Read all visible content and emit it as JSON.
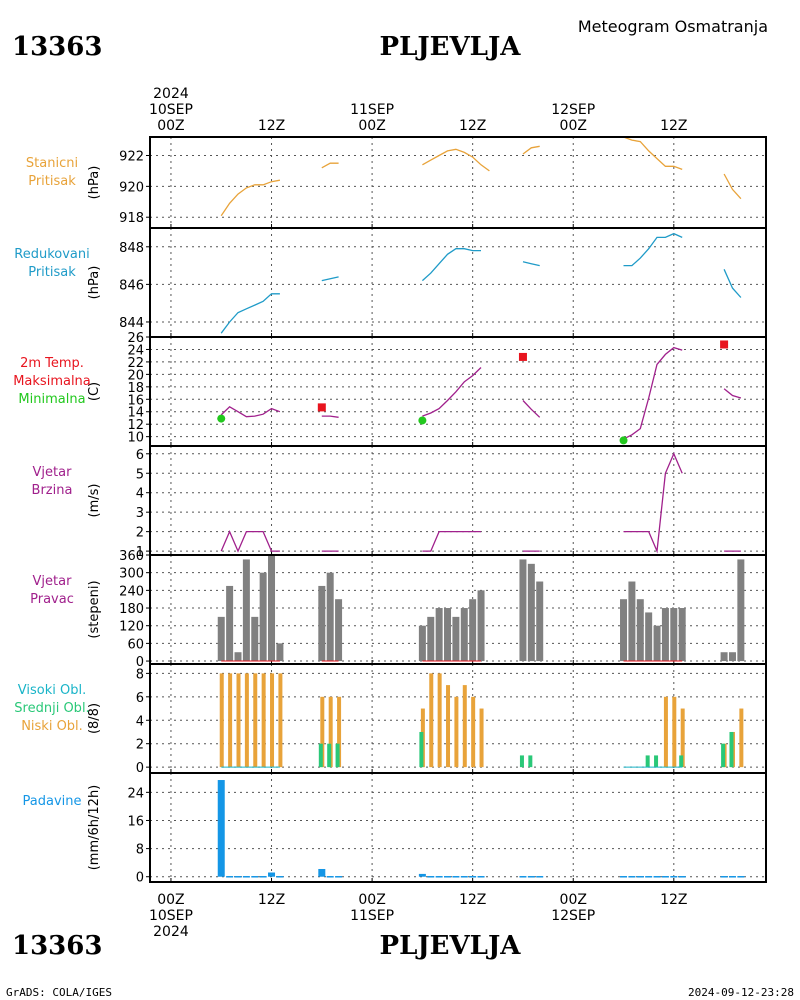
{
  "station_id": "13363",
  "station_name": "PLJEVLJA",
  "product": "Meteogram Osmatranja",
  "footer_left": "GrADS: COLA/IGES",
  "footer_right": "2024-09-12-23:28",
  "time_axis": {
    "top": [
      {
        "h": 0,
        "lines": [
          "2024",
          "10SEP",
          "00Z"
        ]
      },
      {
        "h": 12,
        "lines": [
          "12Z"
        ]
      },
      {
        "h": 24,
        "lines": [
          "11SEP",
          "00Z"
        ]
      },
      {
        "h": 36,
        "lines": [
          "12Z"
        ]
      },
      {
        "h": 48,
        "lines": [
          "12SEP",
          "00Z"
        ]
      },
      {
        "h": 60,
        "lines": [
          "12Z"
        ]
      }
    ],
    "bottom": [
      {
        "h": 0,
        "lines": [
          "00Z",
          "10SEP",
          "2024"
        ]
      },
      {
        "h": 12,
        "lines": [
          "12Z"
        ]
      },
      {
        "h": 24,
        "lines": [
          "00Z",
          "11SEP"
        ]
      },
      {
        "h": 36,
        "lines": [
          "12Z"
        ]
      },
      {
        "h": 48,
        "lines": [
          "00Z",
          "12SEP"
        ]
      },
      {
        "h": 60,
        "lines": [
          "12Z"
        ]
      }
    ]
  },
  "colors": {
    "station_pressure": "#e8a33a",
    "reduced_pressure": "#1f9bc8",
    "temp_line": "#a0208c",
    "tmax": "#e8141e",
    "tmin": "#22c81e",
    "wind": "#a0208c",
    "wind_dir_bar": "#808080",
    "cloud_high": "#19b4c8",
    "cloud_mid": "#2ac878",
    "cloud_low": "#e8a33a",
    "precip": "#1496e6"
  },
  "chart_data": [
    {
      "id": "station_pressure",
      "type": "line",
      "label_lines": [
        "Stanicni",
        "Pritisak"
      ],
      "label_colors": [
        "#e8a33a",
        "#e8a33a"
      ],
      "unit": "(hPa)",
      "ylim": [
        917.3,
        923.2
      ],
      "yticks": [
        918,
        920,
        922
      ],
      "segments": [
        [
          [
            6,
            918.1
          ],
          [
            7,
            918.9
          ],
          [
            8,
            919.5
          ],
          [
            9,
            919.9
          ],
          [
            10,
            920.1
          ],
          [
            11,
            920.1
          ],
          [
            12,
            920.3
          ],
          [
            13,
            920.4
          ]
        ],
        [
          [
            18,
            921.2
          ],
          [
            19,
            921.5
          ],
          [
            20,
            921.5
          ]
        ],
        [
          [
            30,
            921.4
          ],
          [
            31,
            921.7
          ],
          [
            32,
            922.0
          ],
          [
            33,
            922.3
          ],
          [
            34,
            922.4
          ],
          [
            35,
            922.2
          ],
          [
            36,
            921.9
          ],
          [
            37,
            921.4
          ],
          [
            38,
            921.0
          ]
        ],
        [
          [
            42,
            922.1
          ],
          [
            43,
            922.5
          ],
          [
            44,
            922.6
          ]
        ],
        [
          [
            54,
            923.2
          ],
          [
            55,
            923.0
          ],
          [
            56,
            922.9
          ],
          [
            57,
            922.3
          ],
          [
            58,
            921.8
          ],
          [
            59,
            921.3
          ],
          [
            60,
            921.3
          ],
          [
            61,
            921.1
          ]
        ],
        [
          [
            66,
            920.8
          ],
          [
            67,
            919.8
          ],
          [
            68,
            919.2
          ]
        ]
      ]
    },
    {
      "id": "reduced_pressure",
      "type": "line",
      "label_lines": [
        "Redukovani",
        "Pritisak"
      ],
      "label_colors": [
        "#1f9bc8",
        "#1f9bc8"
      ],
      "unit": "(hPa)",
      "ylim": [
        843.2,
        849.0
      ],
      "yticks": [
        844,
        846,
        848
      ],
      "segments": [
        [
          [
            6,
            843.4
          ],
          [
            7,
            844.0
          ],
          [
            8,
            844.5
          ],
          [
            9,
            844.7
          ],
          [
            10,
            844.9
          ],
          [
            11,
            845.1
          ],
          [
            12,
            845.5
          ],
          [
            13,
            845.5
          ]
        ],
        [
          [
            18,
            846.2
          ],
          [
            19,
            846.3
          ],
          [
            20,
            846.4
          ]
        ],
        [
          [
            30,
            846.2
          ],
          [
            31,
            846.6
          ],
          [
            32,
            847.1
          ],
          [
            33,
            847.6
          ],
          [
            34,
            847.9
          ],
          [
            35,
            847.9
          ],
          [
            36,
            847.8
          ],
          [
            37,
            847.8
          ]
        ],
        [
          [
            42,
            847.2
          ],
          [
            43,
            847.1
          ],
          [
            44,
            847.0
          ]
        ],
        [
          [
            54,
            847.0
          ],
          [
            55,
            847.0
          ],
          [
            56,
            847.4
          ],
          [
            57,
            847.9
          ],
          [
            58,
            848.5
          ],
          [
            59,
            848.5
          ],
          [
            60,
            848.7
          ],
          [
            61,
            848.5
          ]
        ],
        [
          [
            66,
            846.8
          ],
          [
            67,
            845.8
          ],
          [
            68,
            845.3
          ]
        ]
      ]
    },
    {
      "id": "temperature",
      "type": "line",
      "label_lines": [
        "2m Temp.",
        "Maksimalna",
        "Minimalna"
      ],
      "label_colors": [
        "#e8141e",
        "#e8141e",
        "#22c81e"
      ],
      "unit": "(C)",
      "ylim": [
        8.5,
        26
      ],
      "yticks": [
        10,
        12,
        14,
        16,
        18,
        20,
        22,
        24,
        26
      ],
      "segments": [
        [
          [
            6,
            13.5
          ],
          [
            7,
            14.8
          ],
          [
            8,
            14.0
          ],
          [
            9,
            13.2
          ],
          [
            10,
            13.3
          ],
          [
            11,
            13.6
          ],
          [
            12,
            14.5
          ],
          [
            13,
            14.0
          ]
        ],
        [
          [
            18,
            13.3
          ],
          [
            19,
            13.3
          ],
          [
            20,
            13.1
          ]
        ],
        [
          [
            30,
            13.3
          ],
          [
            31,
            13.8
          ],
          [
            32,
            14.5
          ],
          [
            33,
            15.8
          ],
          [
            34,
            17.2
          ],
          [
            35,
            18.8
          ],
          [
            36,
            19.8
          ],
          [
            37,
            21.1
          ]
        ],
        [
          [
            42,
            15.8
          ],
          [
            43,
            14.4
          ],
          [
            44,
            13.1
          ]
        ],
        [
          [
            54,
            9.6
          ],
          [
            55,
            10.3
          ],
          [
            56,
            11.3
          ],
          [
            57,
            16.2
          ],
          [
            58,
            21.6
          ],
          [
            59,
            23.2
          ],
          [
            60,
            24.3
          ],
          [
            61,
            23.9
          ]
        ],
        [
          [
            66,
            17.7
          ],
          [
            67,
            16.6
          ],
          [
            68,
            16.2
          ]
        ]
      ],
      "tmax": [
        [
          18,
          14.7
        ],
        [
          42,
          22.8
        ],
        [
          66,
          24.8
        ]
      ],
      "tmin": [
        [
          6,
          12.9
        ],
        [
          30,
          12.6
        ],
        [
          54,
          9.4
        ]
      ]
    },
    {
      "id": "wind_speed",
      "type": "line",
      "label_lines": [
        "Vjetar",
        "Brzina"
      ],
      "label_colors": [
        "#a0208c",
        "#a0208c"
      ],
      "unit": "(m/s)",
      "ylim": [
        0.8,
        6.4
      ],
      "yticks": [
        1,
        2,
        3,
        4,
        5,
        6
      ],
      "segments": [
        [
          [
            6,
            1
          ],
          [
            7,
            2
          ],
          [
            8,
            1
          ],
          [
            9,
            2
          ],
          [
            10,
            2
          ],
          [
            11,
            2
          ],
          [
            12,
            1
          ],
          [
            13,
            1
          ]
        ],
        [
          [
            18,
            1
          ],
          [
            19,
            1
          ],
          [
            20,
            1
          ]
        ],
        [
          [
            30,
            1
          ],
          [
            31,
            1
          ],
          [
            32,
            2
          ],
          [
            33,
            2
          ],
          [
            34,
            2
          ],
          [
            35,
            2
          ],
          [
            36,
            2
          ],
          [
            37,
            2
          ]
        ],
        [
          [
            42,
            1
          ],
          [
            43,
            1
          ],
          [
            44,
            1
          ]
        ],
        [
          [
            54,
            2
          ],
          [
            55,
            2
          ],
          [
            56,
            2
          ],
          [
            57,
            2
          ],
          [
            58,
            1
          ],
          [
            59,
            5
          ],
          [
            60,
            6
          ],
          [
            61,
            5
          ]
        ],
        [
          [
            66,
            1
          ],
          [
            67,
            1
          ],
          [
            68,
            1
          ]
        ]
      ]
    },
    {
      "id": "wind_direction",
      "type": "bar",
      "label_lines": [
        "Vjetar",
        "Pravac"
      ],
      "label_colors": [
        "#a0208c",
        "#a0208c"
      ],
      "unit": "(stepeni)",
      "ylim": [
        -10,
        360
      ],
      "yticks": [
        0,
        60,
        120,
        180,
        240,
        300,
        360
      ],
      "ytick_labels": [
        "0",
        "60",
        "120",
        "180",
        "240",
        "300",
        "360"
      ],
      "bars": [
        [
          6,
          150
        ],
        [
          7,
          255
        ],
        [
          8,
          30
        ],
        [
          9,
          345
        ],
        [
          10,
          150
        ],
        [
          11,
          300
        ],
        [
          12,
          360
        ],
        [
          13,
          60
        ],
        [
          18,
          255
        ],
        [
          19,
          300
        ],
        [
          20,
          210
        ],
        [
          30,
          120
        ],
        [
          31,
          150
        ],
        [
          32,
          180
        ],
        [
          33,
          180
        ],
        [
          34,
          150
        ],
        [
          35,
          180
        ],
        [
          36,
          210
        ],
        [
          37,
          240
        ],
        [
          42,
          345
        ],
        [
          43,
          330
        ],
        [
          44,
          270
        ],
        [
          54,
          210
        ],
        [
          55,
          270
        ],
        [
          56,
          210
        ],
        [
          57,
          165
        ],
        [
          58,
          120
        ],
        [
          59,
          180
        ],
        [
          60,
          180
        ],
        [
          61,
          180
        ],
        [
          66,
          30
        ],
        [
          67,
          30
        ],
        [
          68,
          345
        ]
      ]
    },
    {
      "id": "clouds",
      "type": "bar",
      "label_lines": [
        "Visoki Obl.",
        "Srednji Obl.",
        "Niski Obl."
      ],
      "label_colors": [
        "#19b4c8",
        "#2ac878",
        "#e8a33a"
      ],
      "unit": "(8/8)",
      "ylim": [
        -0.5,
        8.8
      ],
      "yticks": [
        0,
        2,
        4,
        6,
        8
      ],
      "low": [
        [
          6,
          8
        ],
        [
          7,
          8
        ],
        [
          8,
          8
        ],
        [
          9,
          8
        ],
        [
          10,
          8
        ],
        [
          11,
          8
        ],
        [
          12,
          8
        ],
        [
          13,
          8
        ],
        [
          18,
          6
        ],
        [
          19,
          6
        ],
        [
          20,
          6
        ],
        [
          30,
          5
        ],
        [
          31,
          8
        ],
        [
          32,
          8
        ],
        [
          33,
          7
        ],
        [
          34,
          6
        ],
        [
          35,
          7
        ],
        [
          36,
          6
        ],
        [
          37,
          5
        ],
        [
          42,
          0
        ],
        [
          43,
          0
        ],
        [
          44,
          0
        ],
        [
          54,
          0
        ],
        [
          55,
          0
        ],
        [
          56,
          0
        ],
        [
          57,
          0
        ],
        [
          58,
          0
        ],
        [
          59,
          6
        ],
        [
          60,
          6
        ],
        [
          61,
          5
        ],
        [
          66,
          2
        ],
        [
          67,
          3
        ],
        [
          68,
          5
        ]
      ],
      "mid": [
        [
          18,
          2
        ],
        [
          19,
          2
        ],
        [
          20,
          2
        ],
        [
          30,
          3
        ],
        [
          42,
          1
        ],
        [
          43,
          1
        ],
        [
          57,
          1
        ],
        [
          58,
          1
        ],
        [
          61,
          1
        ],
        [
          66,
          2
        ],
        [
          67,
          3
        ]
      ]
    },
    {
      "id": "precipitation",
      "type": "bar",
      "label_lines": [
        "Padavine"
      ],
      "label_colors": [
        "#1496e6"
      ],
      "unit": "(mm/6h/12h)",
      "ylim": [
        -1.5,
        29.5
      ],
      "yticks": [
        0,
        8,
        16,
        24
      ],
      "bars": [
        [
          6,
          27.5
        ],
        [
          7,
          0.2
        ],
        [
          8,
          0.2
        ],
        [
          9,
          0.2
        ],
        [
          10,
          0.2
        ],
        [
          11,
          0.2
        ],
        [
          12,
          1.2
        ],
        [
          13,
          0.2
        ],
        [
          18,
          2.2
        ],
        [
          19,
          0.2
        ],
        [
          20,
          0.2
        ],
        [
          30,
          0.8
        ],
        [
          31,
          0.2
        ],
        [
          32,
          0.2
        ],
        [
          33,
          0.2
        ],
        [
          34,
          0.2
        ],
        [
          35,
          0.2
        ],
        [
          36,
          0.2
        ],
        [
          37,
          0.2
        ],
        [
          42,
          0.2
        ],
        [
          43,
          0.2
        ],
        [
          44,
          0.2
        ],
        [
          54,
          0.2
        ],
        [
          55,
          0.2
        ],
        [
          56,
          0.2
        ],
        [
          57,
          0.2
        ],
        [
          58,
          0.2
        ],
        [
          59,
          0.2
        ],
        [
          60,
          0.2
        ],
        [
          61,
          0.2
        ],
        [
          66,
          0.2
        ],
        [
          67,
          0.2
        ],
        [
          68,
          0.2
        ]
      ]
    }
  ]
}
